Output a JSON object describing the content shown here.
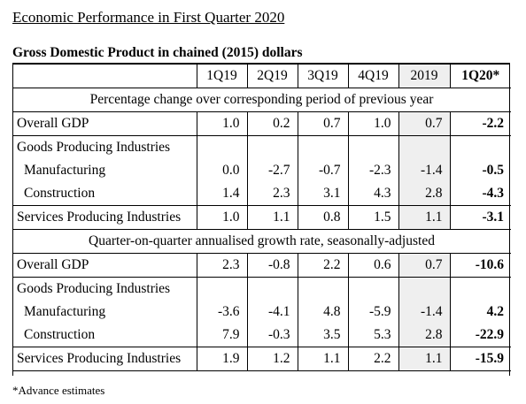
{
  "page_title": "Economic Performance in First Quarter 2020",
  "table_title": "Gross Domestic Product in chained (2015) dollars",
  "headers": [
    "1Q19",
    "2Q19",
    "3Q19",
    "4Q19",
    "2019",
    "1Q20*"
  ],
  "sections": [
    {
      "title": "Percentage change over corresponding period of previous year",
      "rows": [
        {
          "label": "Overall GDP",
          "values": [
            "1.0",
            "0.2",
            "0.7",
            "1.0",
            "0.7",
            "-2.2"
          ]
        },
        {
          "label": "Goods Producing Industries",
          "values": [
            "",
            "",
            "",
            "",
            "",
            ""
          ]
        },
        {
          "label": "Manufacturing",
          "values": [
            "0.0",
            "-2.7",
            "-0.7",
            "-2.3",
            "-1.4",
            "-0.5"
          ]
        },
        {
          "label": "Construction",
          "values": [
            "1.4",
            "2.3",
            "3.1",
            "4.3",
            "2.8",
            "-4.3"
          ]
        },
        {
          "label": "Services Producing Industries",
          "values": [
            "1.0",
            "1.1",
            "0.8",
            "1.5",
            "1.1",
            "-3.1"
          ]
        }
      ]
    },
    {
      "title": "Quarter-on-quarter annualised growth rate, seasonally-adjusted",
      "rows": [
        {
          "label": "Overall GDP",
          "values": [
            "2.3",
            "-0.8",
            "2.2",
            "0.6",
            "0.7",
            "-10.6"
          ]
        },
        {
          "label": "Goods Producing Industries",
          "values": [
            "",
            "",
            "",
            "",
            "",
            ""
          ]
        },
        {
          "label": "Manufacturing",
          "values": [
            "-3.6",
            "-4.1",
            "4.8",
            "-5.9",
            "-1.4",
            "4.2"
          ]
        },
        {
          "label": "Construction",
          "values": [
            "7.9",
            "-0.3",
            "3.5",
            "5.3",
            "2.8",
            "-22.9"
          ]
        },
        {
          "label": "Services Producing Industries",
          "values": [
            "1.9",
            "1.2",
            "1.1",
            "2.2",
            "1.1",
            "-15.9"
          ]
        }
      ]
    }
  ],
  "footnote": "*Advance estimates",
  "colors": {
    "shade_2019": "#efefef",
    "border": "#000000"
  }
}
